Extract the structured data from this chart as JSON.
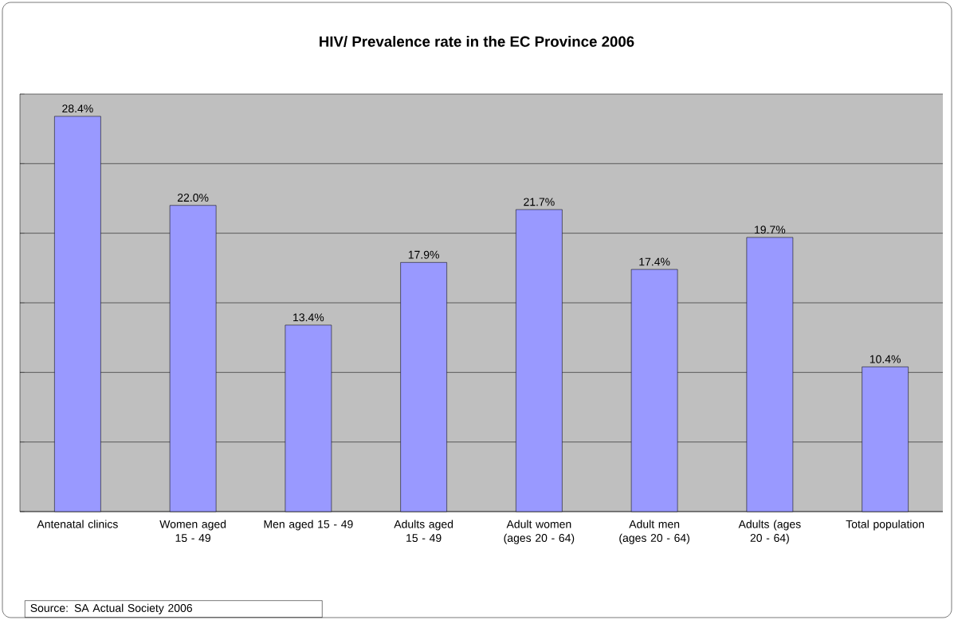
{
  "chart_data": {
    "type": "bar",
    "title": "HIV/ Prevalence rate in the EC Province 2006",
    "categories": [
      "Antenatal clinics",
      "Women aged 15 - 49",
      "Men aged 15 - 49",
      "Adults aged 15 - 49",
      "Adult women (ages 20 - 64)",
      "Adult men (ages 20 - 64)",
      "Adults (ages 20 - 64)",
      "Total population"
    ],
    "values": [
      28.4,
      22.0,
      13.4,
      17.9,
      21.7,
      17.4,
      19.7,
      10.4
    ],
    "value_labels": [
      "28.4%",
      "22.0%",
      "13.4%",
      "17.9%",
      "21.7%",
      "17.4%",
      "19.7%",
      "10.4%"
    ],
    "color": "#9999ff",
    "ylim": [
      0,
      30
    ],
    "yticks": [
      {
        "value": 0,
        "label": null
      },
      {
        "value": 5,
        "label": null
      },
      {
        "value": 10,
        "label": null
      },
      {
        "value": 15,
        "label": null
      },
      {
        "value": 20,
        "label": null
      },
      {
        "value": 25,
        "label": null
      },
      {
        "value": 30,
        "label": null
      }
    ],
    "tick_labels": "x",
    "grid": "y",
    "annotations": [
      "Source: SA Actual Society 2006"
    ]
  }
}
